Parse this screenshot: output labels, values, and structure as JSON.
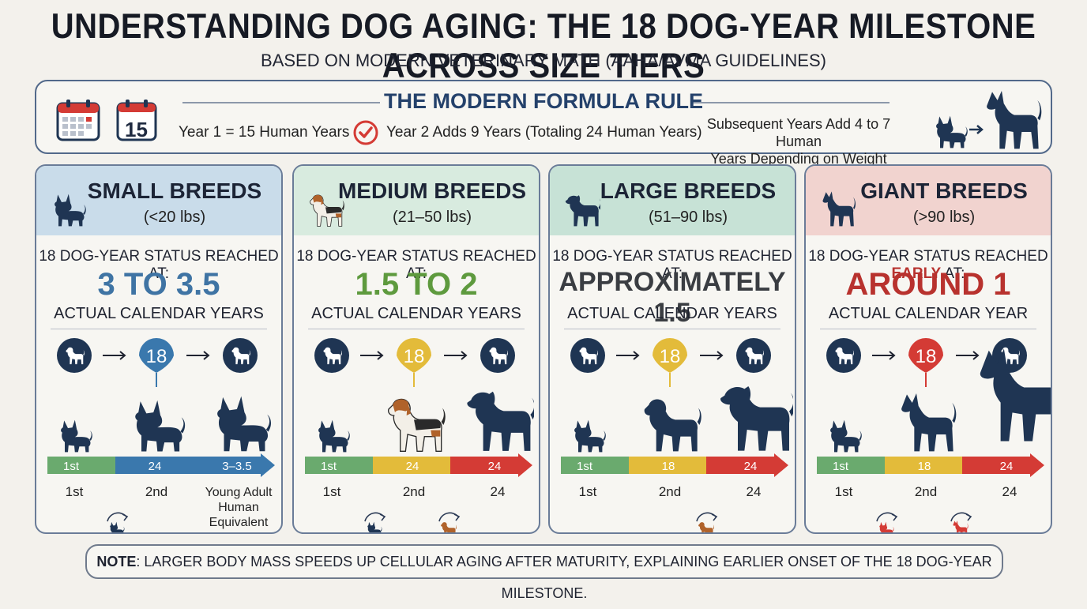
{
  "title": "UNDERSTANDING DOG AGING: THE 18 DOG-YEAR MILESTONE ACROSS SIZE TIERS",
  "subtitle": "BASED ON MODERN VETERINARY MATH (AAHA/AVMA GUIDELINES)",
  "formula": {
    "title": "THE MODERN FORMULA RULE",
    "calendar_number": "15",
    "rule_1": "Year 1 = 15 Human Years",
    "rule_2": "Year 2 Adds 9 Years (Totaling 24 Human Years)",
    "rule_3_line1": "Subsequent Years Add 4 to 7 Human",
    "rule_3_line2": "Years Depending on Weight"
  },
  "colors": {
    "small": "#c9dcea",
    "medium": "#d8ebdf",
    "large": "#c7e2d6",
    "giant": "#f1d3cf",
    "small_accent": "#3f74a4",
    "medium_accent": "#5e9a3e",
    "large_accent": "#3a3d42",
    "giant_accent": "#b8322e",
    "navy": "#1f3553",
    "green": "#6aaa6e",
    "yellow": "#e3bb3a",
    "red": "#d43b35",
    "blue": "#3a78ad"
  },
  "panels": [
    {
      "name": "SMALL BREEDS",
      "range": "(<20 lbs)",
      "status_pre": "18 DOG-YEAR STATUS REACHED AT:",
      "status_early": "",
      "status_post": "",
      "big": "3 TO 3.5",
      "years_label": "ACTUAL CALENDAR YEARS",
      "badge": "18",
      "bar": [
        "1st",
        "24",
        "3–3.5"
      ],
      "labels": [
        "1st",
        "2nd",
        "Young Adult",
        "Human",
        "Equivalent"
      ]
    },
    {
      "name": "MEDIUM BREEDS",
      "range": "(21–50 lbs)",
      "status_pre": "18 DOG-YEAR STATUS REACHED AT:",
      "status_early": "",
      "status_post": "",
      "big": "1.5 TO 2",
      "years_label": "ACTUAL CALENDAR YEARS",
      "badge": "18",
      "bar": [
        "1st",
        "24",
        "24"
      ],
      "labels": [
        "1st",
        "2nd",
        "24"
      ]
    },
    {
      "name": "LARGE BREEDS",
      "range": "(51–90 lbs)",
      "status_pre": "18 DOG-YEAR STATUS REACHED AT:",
      "status_early": "",
      "status_post": "",
      "big": "APPROXIMATELY 1.5",
      "years_label": "ACTUAL CALENDAR YEARS",
      "badge": "18",
      "bar": [
        "1st",
        "18",
        "24"
      ],
      "labels": [
        "1st",
        "2nd",
        "24"
      ]
    },
    {
      "name": "GIANT BREEDS",
      "range": "(>90 lbs)",
      "status_pre": "18 DOG-YEAR STATUS REACHED ",
      "status_early": "EARLY",
      "status_post": " AT:",
      "big": "AROUND 1",
      "years_label": "ACTUAL CALENDAR YEAR",
      "badge": "18",
      "bar": [
        "1st",
        "18",
        "24"
      ],
      "labels": [
        "1st",
        "2nd",
        "24"
      ]
    }
  ],
  "note": {
    "label": "NOTE",
    "text": ": LARGER BODY MASS SPEEDS UP CELLULAR AGING AFTER MATURITY, EXPLAINING EARLIER ONSET OF THE 18 DOG-YEAR MILESTONE."
  }
}
